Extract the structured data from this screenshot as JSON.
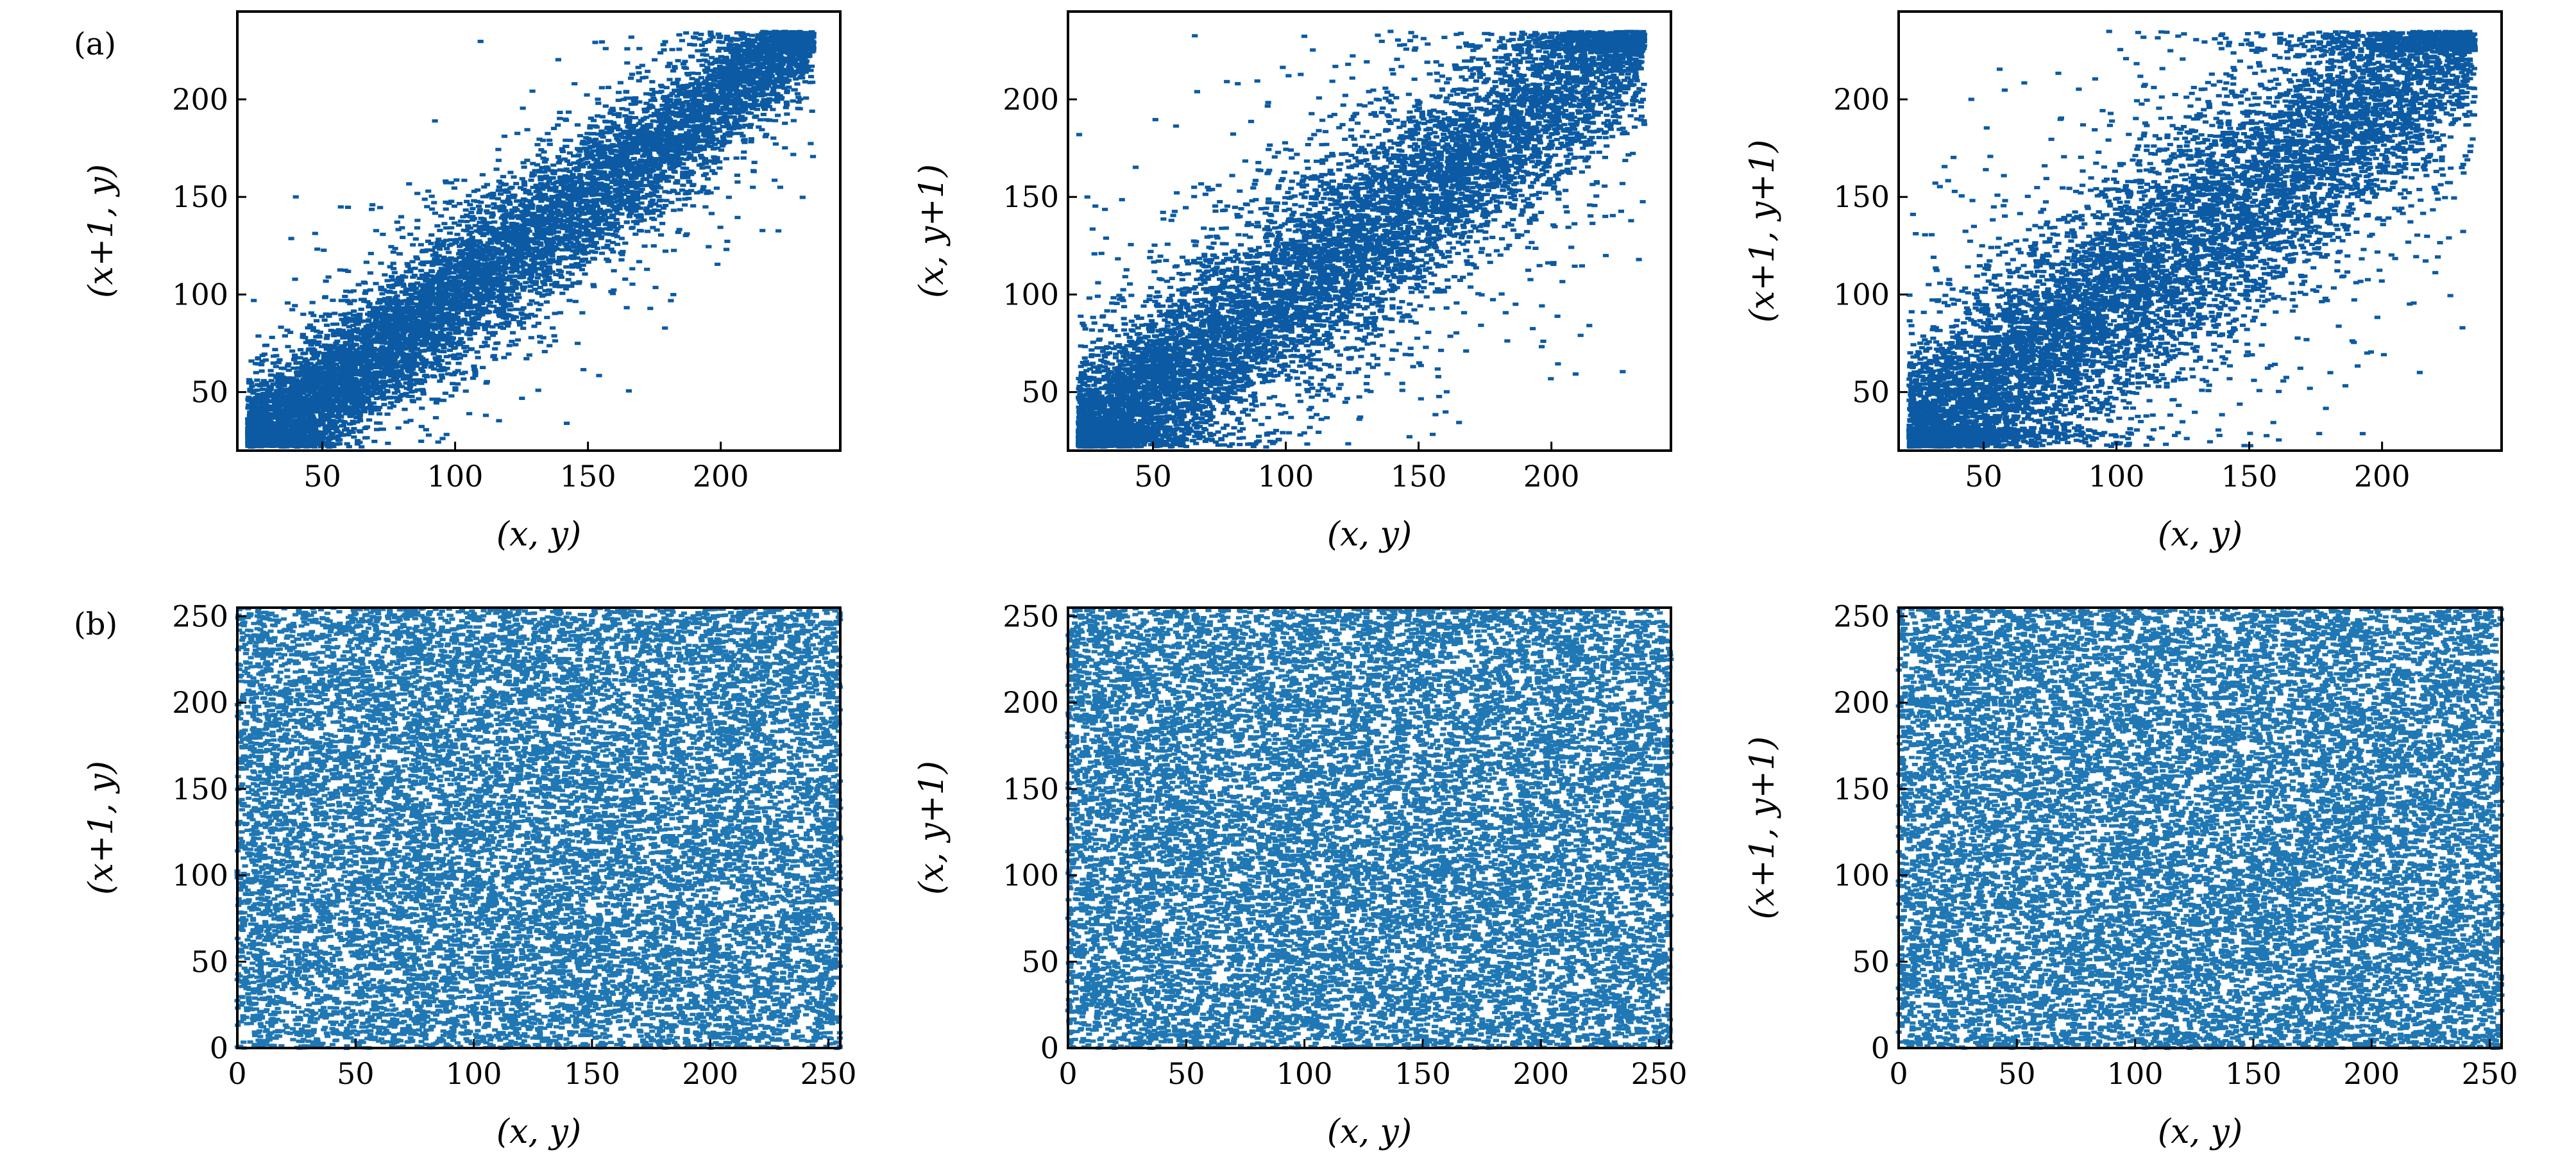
{
  "figure": {
    "row_a_label": "(a)",
    "row_b_label": "(b)"
  },
  "chart_data": [
    {
      "id": "a1",
      "type": "scatter",
      "row": "a",
      "xlabel": "(x, y)",
      "ylabel": "(x+1, y)",
      "xlim": [
        18,
        245
      ],
      "ylim": [
        20,
        245
      ],
      "xticks": [
        50,
        100,
        150,
        200
      ],
      "yticks": [
        50,
        100,
        150,
        200
      ],
      "distribution": {
        "kind": "correlated",
        "center_x": 125,
        "span_x": [
          22,
          235
        ],
        "spread": 14,
        "outlier_fraction": 0.08
      },
      "point_count": 9000,
      "color": "#0b5aa3",
      "grid": false
    },
    {
      "id": "a2",
      "type": "scatter",
      "row": "a",
      "xlabel": "(x, y)",
      "ylabel": "(x, y+1)",
      "xlim": [
        18,
        245
      ],
      "ylim": [
        20,
        245
      ],
      "xticks": [
        50,
        100,
        150,
        200
      ],
      "yticks": [
        50,
        100,
        150,
        200
      ],
      "distribution": {
        "kind": "correlated",
        "center_x": 125,
        "span_x": [
          22,
          235
        ],
        "spread": 20,
        "outlier_fraction": 0.12
      },
      "point_count": 9000,
      "color": "#0b5aa3",
      "grid": false
    },
    {
      "id": "a3",
      "type": "scatter",
      "row": "a",
      "xlabel": "(x, y)",
      "ylabel": "(x+1, y+1)",
      "xlim": [
        18,
        245
      ],
      "ylim": [
        20,
        245
      ],
      "xticks": [
        50,
        100,
        150,
        200
      ],
      "yticks": [
        50,
        100,
        150,
        200
      ],
      "distribution": {
        "kind": "correlated",
        "center_x": 125,
        "span_x": [
          22,
          235
        ],
        "spread": 23,
        "outlier_fraction": 0.14
      },
      "point_count": 9000,
      "color": "#0b5aa3",
      "grid": false
    },
    {
      "id": "b1",
      "type": "scatter",
      "row": "b",
      "xlabel": "(x, y)",
      "ylabel": "(x+1, y)",
      "xlim": [
        0,
        255
      ],
      "ylim": [
        0,
        255
      ],
      "xticks": [
        0,
        50,
        100,
        150,
        200,
        250
      ],
      "yticks": [
        0,
        50,
        100,
        150,
        200,
        250
      ],
      "distribution": {
        "kind": "uniform",
        "range": [
          0,
          255
        ]
      },
      "point_count": 14000,
      "color": "#1f77b4",
      "grid": false
    },
    {
      "id": "b2",
      "type": "scatter",
      "row": "b",
      "xlabel": "(x, y)",
      "ylabel": "(x, y+1)",
      "xlim": [
        0,
        255
      ],
      "ylim": [
        0,
        255
      ],
      "xticks": [
        0,
        50,
        100,
        150,
        200,
        250
      ],
      "yticks": [
        0,
        50,
        100,
        150,
        200,
        250
      ],
      "distribution": {
        "kind": "uniform",
        "range": [
          0,
          255
        ]
      },
      "point_count": 14000,
      "color": "#1f77b4",
      "grid": false
    },
    {
      "id": "b3",
      "type": "scatter",
      "row": "b",
      "xlabel": "(x, y)",
      "ylabel": "(x+1, y+1)",
      "xlim": [
        0,
        255
      ],
      "ylim": [
        0,
        255
      ],
      "xticks": [
        0,
        50,
        100,
        150,
        200,
        250
      ],
      "yticks": [
        0,
        50,
        100,
        150,
        200,
        250
      ],
      "distribution": {
        "kind": "uniform",
        "range": [
          0,
          255
        ]
      },
      "point_count": 14000,
      "color": "#1f77b4",
      "grid": false
    }
  ]
}
